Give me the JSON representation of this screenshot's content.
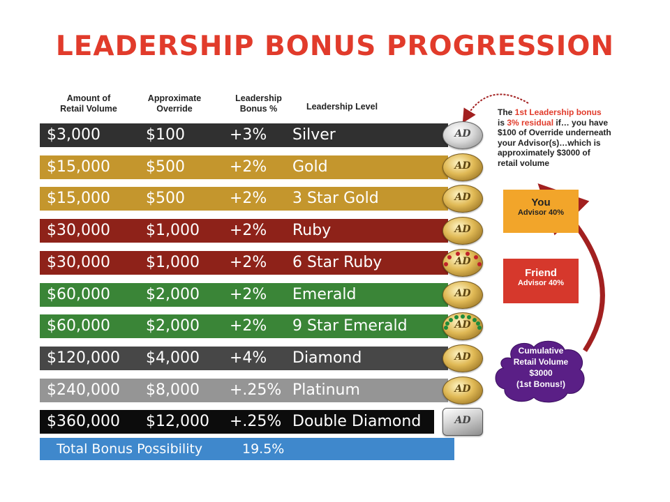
{
  "title": "LEADERSHIP BONUS PROGRESSION",
  "headers": {
    "volume": "Amount of\nRetail Volume",
    "override": "Approximate\nOverride",
    "bonus": "Leadership\nBonus %",
    "level": "Leadership Level"
  },
  "rows": [
    {
      "volume": "$3,000",
      "override": "$100",
      "bonus": "+3%",
      "level": "Silver",
      "color": "#303030",
      "medal": "silver"
    },
    {
      "volume": "$15,000",
      "override": "$500",
      "bonus": "+2%",
      "level": "Gold",
      "color": "#c4962d",
      "medal": "gold"
    },
    {
      "volume": "$15,000",
      "override": "$500",
      "bonus": "+2%",
      "level": "3 Star Gold",
      "color": "#c4962d",
      "medal": "gold"
    },
    {
      "volume": "$30,000",
      "override": "$1,000",
      "bonus": "+2%",
      "level": "Ruby",
      "color": "#8e2219",
      "medal": "gold"
    },
    {
      "volume": "$30,000",
      "override": "$1,000",
      "bonus": "+2%",
      "level": "6 Star Ruby",
      "color": "#8e2219",
      "medal": "gold-ruby"
    },
    {
      "volume": "$60,000",
      "override": "$2,000",
      "bonus": "+2%",
      "level": "Emerald",
      "color": "#3a8537",
      "medal": "gold"
    },
    {
      "volume": "$60,000",
      "override": "$2,000",
      "bonus": "+2%",
      "level": "9 Star Emerald",
      "color": "#3a8537",
      "medal": "gold-emerald"
    },
    {
      "volume": "$120,000",
      "override": "$4,000",
      "bonus": "+4%",
      "level": "Diamond",
      "color": "#474747",
      "medal": "gold"
    },
    {
      "volume": "$240,000",
      "override": "$8,000",
      "bonus": "+.25%",
      "level": "Platinum",
      "color": "#959595",
      "medal": "gold"
    },
    {
      "volume": "$360,000",
      "override": "$12,000",
      "bonus": "+.25%",
      "level": "Double Diamond",
      "color": "#0c0c0c",
      "medal": "diamond"
    }
  ],
  "medal_label": "AD",
  "total": {
    "label": "Total Bonus Possibility",
    "value": "19.5%"
  },
  "note": {
    "line1_a": "The ",
    "line1_sup": "1st",
    "line1_b": " Leadership bonus",
    "line2_a": "is ",
    "line2_b": "3% residual",
    "line2_c": " if… you have",
    "line3_a": "$100 of Override",
    "line3_b": " underneath",
    "line4": "your Advisor(s)…which is",
    "line5": "approximately $3000 of",
    "line6": "retail volume"
  },
  "you_box": {
    "title": "You",
    "subtitle": "Advisor 40%",
    "color": "#f2a52a"
  },
  "friend_box": {
    "title": "Friend",
    "subtitle": "Advisor 40%",
    "color": "#d6382c"
  },
  "cloud": {
    "line1": "Cumulative",
    "line2": "Retail Volume",
    "line3": "$3000",
    "line4": "(1st Bonus!)",
    "color": "#5a1f86"
  },
  "arrow_color": "#a22020"
}
